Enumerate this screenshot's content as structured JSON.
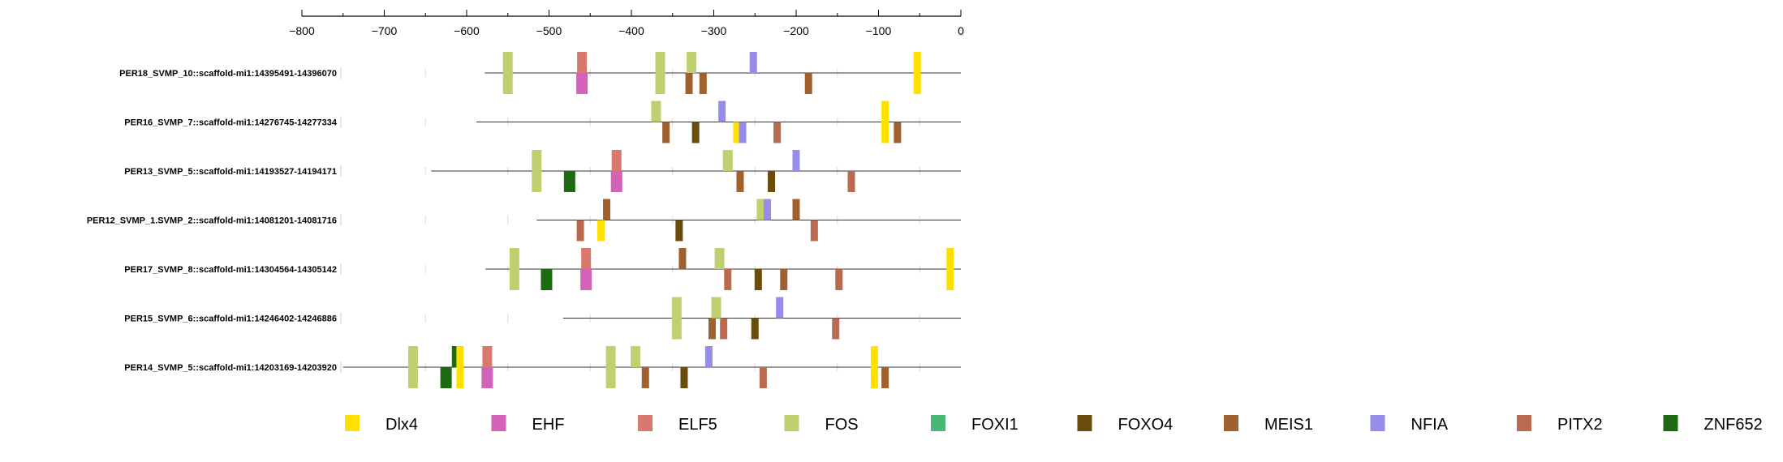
{
  "chart_data": {
    "type": "motif-track",
    "x_axis": {
      "ticks": [
        "−800",
        "−700",
        "−600",
        "−500",
        "−400",
        "−300",
        "−200",
        "−100",
        "0"
      ],
      "range": [
        -800,
        0
      ]
    },
    "sequences": [
      {
        "label": "PER18_SVMP_10::scaffold-mi1:14395491-14396070",
        "start": -578
      },
      {
        "label": "PER16_SVMP_7::scaffold-mi1:14276745-14277334",
        "start": -588
      },
      {
        "label": "PER13_SVMP_5::scaffold-mi1:14193527-14194171",
        "start": -643
      },
      {
        "label": "PER12_SVMP_1.SVMP_2::scaffold-mi1:14081201-14081716",
        "start": -515
      },
      {
        "label": "PER17_SVMP_8::scaffold-mi1:14304564-14305142",
        "start": -577
      },
      {
        "label": "PER15_SVMP_6::scaffold-mi1:14246402-14246886",
        "start": -483
      },
      {
        "label": "PER14_SVMP_5::scaffold-mi1:14203169-14203920",
        "start": -750
      }
    ],
    "motifs": [
      {
        "row": 0,
        "x": -550,
        "factor": "FOS",
        "strand": "both"
      },
      {
        "row": 0,
        "x": -460,
        "factor": "ELF5",
        "strand": "+"
      },
      {
        "row": 0,
        "x": -460,
        "factor": "EHF",
        "strand": "-"
      },
      {
        "row": 0,
        "x": -365,
        "factor": "FOS",
        "strand": "both"
      },
      {
        "row": 0,
        "x": -327,
        "factor": "FOS",
        "strand": "+"
      },
      {
        "row": 0,
        "x": -330,
        "factor": "MEIS1",
        "strand": "-"
      },
      {
        "row": 0,
        "x": -313,
        "factor": "MEIS1",
        "strand": "-"
      },
      {
        "row": 0,
        "x": -252,
        "factor": "NFIA",
        "strand": "+"
      },
      {
        "row": 0,
        "x": -185,
        "factor": "MEIS1",
        "strand": "-"
      },
      {
        "row": 0,
        "x": -53,
        "factor": "Dlx4",
        "strand": "both"
      },
      {
        "row": 1,
        "x": -370,
        "factor": "FOS",
        "strand": "+"
      },
      {
        "row": 1,
        "x": -358,
        "factor": "MEIS1",
        "strand": "-"
      },
      {
        "row": 1,
        "x": -290,
        "factor": "NFIA",
        "strand": "+"
      },
      {
        "row": 1,
        "x": -322,
        "factor": "FOXO4",
        "strand": "-"
      },
      {
        "row": 1,
        "x": -272,
        "factor": "Dlx4",
        "strand": "-"
      },
      {
        "row": 1,
        "x": -265,
        "factor": "NFIA",
        "strand": "-"
      },
      {
        "row": 1,
        "x": -223,
        "factor": "PITX2",
        "strand": "-"
      },
      {
        "row": 1,
        "x": -92,
        "factor": "Dlx4",
        "strand": "both"
      },
      {
        "row": 1,
        "x": -77,
        "factor": "MEIS1",
        "strand": "-"
      },
      {
        "row": 2,
        "x": -515,
        "factor": "FOS",
        "strand": "both"
      },
      {
        "row": 2,
        "x": -475,
        "factor": "ZNF652",
        "strand": "-"
      },
      {
        "row": 2,
        "x": -418,
        "factor": "ELF5",
        "strand": "+"
      },
      {
        "row": 2,
        "x": -418,
        "factor": "EHF",
        "strand": "-"
      },
      {
        "row": 2,
        "x": -283,
        "factor": "FOS",
        "strand": "+"
      },
      {
        "row": 2,
        "x": -268,
        "factor": "MEIS1",
        "strand": "-"
      },
      {
        "row": 2,
        "x": -230,
        "factor": "FOXO4",
        "strand": "-"
      },
      {
        "row": 2,
        "x": -200,
        "factor": "NFIA",
        "strand": "+"
      },
      {
        "row": 2,
        "x": -133,
        "factor": "PITX2",
        "strand": "-"
      },
      {
        "row": 3,
        "x": -430,
        "factor": "MEIS1",
        "strand": "+"
      },
      {
        "row": 3,
        "x": -462,
        "factor": "PITX2",
        "strand": "-"
      },
      {
        "row": 3,
        "x": -437,
        "factor": "Dlx4",
        "strand": "-"
      },
      {
        "row": 3,
        "x": -342,
        "factor": "FOXO4",
        "strand": "-"
      },
      {
        "row": 3,
        "x": -242,
        "factor": "FOS",
        "strand": "+"
      },
      {
        "row": 3,
        "x": -235,
        "factor": "NFIA",
        "strand": "+"
      },
      {
        "row": 3,
        "x": -200,
        "factor": "MEIS1",
        "strand": "+"
      },
      {
        "row": 3,
        "x": -178,
        "factor": "PITX2",
        "strand": "-"
      },
      {
        "row": 4,
        "x": -542,
        "factor": "FOS",
        "strand": "both"
      },
      {
        "row": 4,
        "x": -503,
        "factor": "ZNF652",
        "strand": "-"
      },
      {
        "row": 4,
        "x": -455,
        "factor": "ELF5",
        "strand": "+"
      },
      {
        "row": 4,
        "x": -455,
        "factor": "EHF",
        "strand": "-"
      },
      {
        "row": 4,
        "x": -338,
        "factor": "MEIS1",
        "strand": "+"
      },
      {
        "row": 4,
        "x": -293,
        "factor": "FOS",
        "strand": "+"
      },
      {
        "row": 4,
        "x": -283,
        "factor": "PITX2",
        "strand": "-"
      },
      {
        "row": 4,
        "x": -246,
        "factor": "FOXO4",
        "strand": "-"
      },
      {
        "row": 4,
        "x": -215,
        "factor": "MEIS1",
        "strand": "-"
      },
      {
        "row": 4,
        "x": -148,
        "factor": "PITX2",
        "strand": "-"
      },
      {
        "row": 4,
        "x": -13,
        "factor": "Dlx4",
        "strand": "both"
      },
      {
        "row": 5,
        "x": -345,
        "factor": "FOS",
        "strand": "both"
      },
      {
        "row": 5,
        "x": -297,
        "factor": "FOS",
        "strand": "+"
      },
      {
        "row": 5,
        "x": -302,
        "factor": "MEIS1",
        "strand": "-"
      },
      {
        "row": 5,
        "x": -288,
        "factor": "PITX2",
        "strand": "-"
      },
      {
        "row": 5,
        "x": -250,
        "factor": "FOXO4",
        "strand": "-"
      },
      {
        "row": 5,
        "x": -220,
        "factor": "NFIA",
        "strand": "+"
      },
      {
        "row": 5,
        "x": -152,
        "factor": "PITX2",
        "strand": "-"
      },
      {
        "row": 6,
        "x": -665,
        "factor": "FOS",
        "strand": "both"
      },
      {
        "row": 6,
        "x": -625,
        "factor": "ZNF652",
        "strand": "-"
      },
      {
        "row": 6,
        "x": -612,
        "factor": "ZNF652",
        "strand": "+"
      },
      {
        "row": 6,
        "x": -608,
        "factor": "Dlx4",
        "strand": "both"
      },
      {
        "row": 6,
        "x": -575,
        "factor": "ELF5",
        "strand": "+"
      },
      {
        "row": 6,
        "x": -575,
        "factor": "EHF",
        "strand": "-"
      },
      {
        "row": 6,
        "x": -425,
        "factor": "FOS",
        "strand": "both"
      },
      {
        "row": 6,
        "x": -395,
        "factor": "FOS",
        "strand": "+"
      },
      {
        "row": 6,
        "x": -383,
        "factor": "MEIS1",
        "strand": "-"
      },
      {
        "row": 6,
        "x": -336,
        "factor": "FOXO4",
        "strand": "-"
      },
      {
        "row": 6,
        "x": -306,
        "factor": "NFIA",
        "strand": "+"
      },
      {
        "row": 6,
        "x": -240,
        "factor": "PITX2",
        "strand": "-"
      },
      {
        "row": 6,
        "x": -105,
        "factor": "Dlx4",
        "strand": "both"
      },
      {
        "row": 6,
        "x": -92,
        "factor": "MEIS1",
        "strand": "-"
      }
    ],
    "legend": [
      {
        "name": "Dlx4",
        "color": "#ffe000"
      },
      {
        "name": "EHF",
        "color": "#d263b8"
      },
      {
        "name": "ELF5",
        "color": "#d9796e"
      },
      {
        "name": "FOS",
        "color": "#bed06f"
      },
      {
        "name": "FOXI1",
        "color": "#47b875"
      },
      {
        "name": "FOXO4",
        "color": "#6a4c0b"
      },
      {
        "name": "MEIS1",
        "color": "#a0612f"
      },
      {
        "name": "NFIA",
        "color": "#968cea"
      },
      {
        "name": "PITX2",
        "color": "#ba6b4f"
      },
      {
        "name": "ZNF652",
        "color": "#1e6a13"
      }
    ],
    "legend_position": "bottom"
  }
}
